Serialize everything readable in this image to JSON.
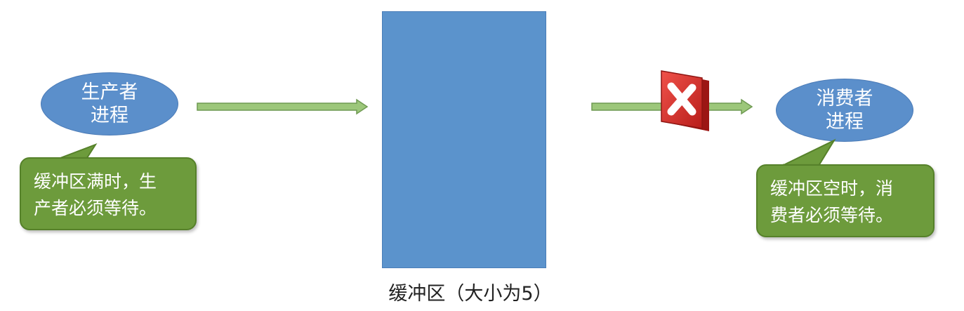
{
  "producer": {
    "line1": "生产者",
    "line2": "进程",
    "note_line1": "缓冲区满时，生",
    "note_line2": "产者必须等待。"
  },
  "consumer": {
    "line1": "消费者",
    "line2": "进程",
    "note_line1": "缓冲区空时，消",
    "note_line2": "费者必须等待。"
  },
  "buffer": {
    "label": "缓冲区（大小为5）"
  },
  "colors": {
    "process_fill": "#5b8fcb",
    "callout_fill": "#6d9b3c",
    "buffer_fill": "#5b93cc",
    "arrow_fill": "#9cc77a",
    "block_red": "#d8302c"
  },
  "icons": {
    "blocked": "red-x-icon"
  }
}
